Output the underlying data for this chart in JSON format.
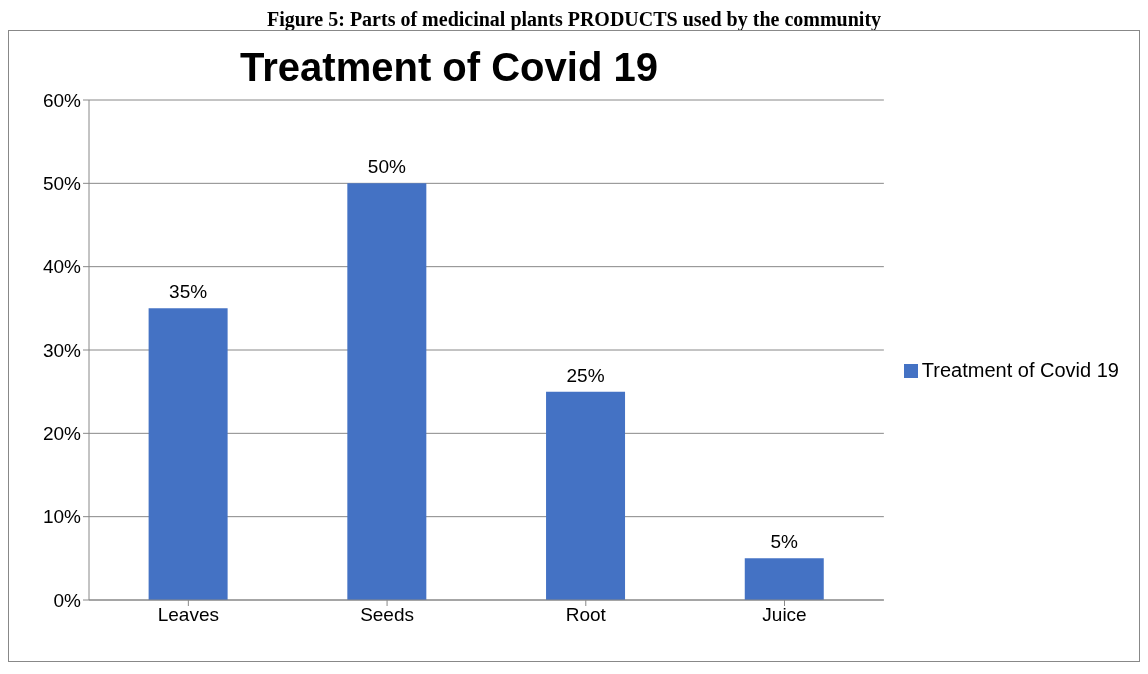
{
  "chart_data": {
    "type": "bar",
    "title": "Treatment of Covid 19",
    "annotations": [
      "Figure 5: Parts of medicinal plants PRODUCTS used by the community"
    ],
    "categories": [
      "Leaves",
      "Seeds",
      "Root",
      "Juice"
    ],
    "series": [
      {
        "name": "Treatment of Covid 19",
        "color": "#4472c4",
        "values": [
          35,
          50,
          25,
          5
        ],
        "value_labels": [
          "35%",
          "50%",
          "25%",
          "5%"
        ]
      }
    ],
    "ylim": [
      0,
      60
    ],
    "yticks": [
      {
        "value": 0,
        "label": "0%"
      },
      {
        "value": 10,
        "label": "10%"
      },
      {
        "value": 20,
        "label": "20%"
      },
      {
        "value": 30,
        "label": "30%"
      },
      {
        "value": 40,
        "label": "40%"
      },
      {
        "value": 50,
        "label": "50%"
      },
      {
        "value": 60,
        "label": "60%"
      }
    ],
    "grid": "y",
    "legend": "right"
  }
}
